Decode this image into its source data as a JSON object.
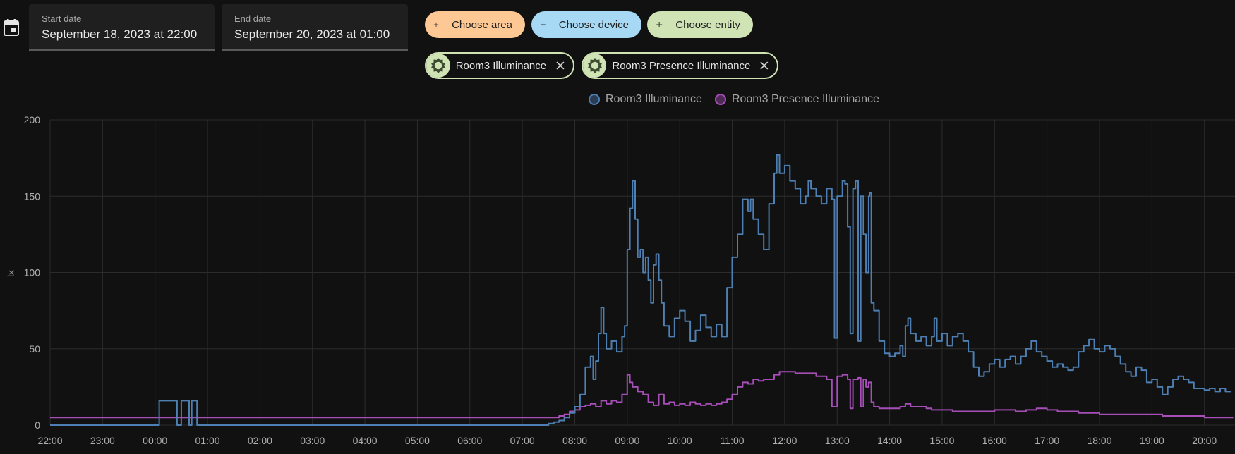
{
  "date_range": {
    "start_label": "Start date",
    "start_value": "September 18, 2023 at 22:00",
    "end_label": "End date",
    "end_value": "September 20, 2023 at 01:00"
  },
  "target_picker": {
    "choose_area": "Choose area",
    "choose_device": "Choose device",
    "choose_entity": "Choose entity"
  },
  "selected_entities": [
    {
      "label": "Room3 Illuminance",
      "icon": "brightness-icon"
    },
    {
      "label": "Room3 Presence Illuminance",
      "icon": "brightness-icon"
    }
  ],
  "colors": {
    "area_chip": "#fdc894",
    "device_chip": "#a7d9f4",
    "entity_chip": "#cfe3b5",
    "series_1": "#4e7fb3",
    "series_2": "#a74eb8",
    "grid": "#2c2c2c",
    "background": "#111111"
  },
  "chart_data": {
    "type": "line",
    "title": "",
    "xlabel": "",
    "ylabel": "lx",
    "ylim": [
      0,
      200
    ],
    "y_ticks": [
      "0",
      "50",
      "100",
      "150",
      "200"
    ],
    "x_tick_labels": [
      "22:00",
      "23:00",
      "00:00",
      "01:00",
      "02:00",
      "03:00",
      "04:00",
      "05:00",
      "06:00",
      "07:00",
      "08:00",
      "09:00",
      "10:00",
      "11:00",
      "12:00",
      "13:00",
      "14:00",
      "15:00",
      "16:00",
      "17:00",
      "18:00",
      "19:00",
      "20:00"
    ],
    "x_unit": "hours since 2023-09-18 22:00",
    "xlim": [
      0,
      22.55
    ],
    "legend": [
      "Room3 Illuminance",
      "Room3 Presence Illuminance"
    ],
    "series": [
      {
        "name": "Room3 Illuminance",
        "step": true,
        "points": [
          [
            0,
            0
          ],
          [
            2.08,
            0
          ],
          [
            2.08,
            16
          ],
          [
            2.42,
            16
          ],
          [
            2.42,
            0
          ],
          [
            2.5,
            0
          ],
          [
            2.5,
            16
          ],
          [
            2.65,
            16
          ],
          [
            2.65,
            0
          ],
          [
            2.7,
            0
          ],
          [
            2.7,
            16
          ],
          [
            2.8,
            16
          ],
          [
            2.8,
            0
          ],
          [
            9.45,
            0
          ],
          [
            9.5,
            1
          ],
          [
            9.6,
            2
          ],
          [
            9.7,
            3
          ],
          [
            9.8,
            5
          ],
          [
            9.9,
            8
          ],
          [
            10.0,
            12
          ],
          [
            10.1,
            20
          ],
          [
            10.2,
            38
          ],
          [
            10.3,
            45
          ],
          [
            10.35,
            30
          ],
          [
            10.4,
            42
          ],
          [
            10.45,
            60
          ],
          [
            10.5,
            77
          ],
          [
            10.55,
            60
          ],
          [
            10.6,
            50
          ],
          [
            10.7,
            55
          ],
          [
            10.8,
            48
          ],
          [
            10.9,
            58
          ],
          [
            10.95,
            65
          ],
          [
            11.0,
            115
          ],
          [
            11.05,
            142
          ],
          [
            11.1,
            160
          ],
          [
            11.15,
            135
          ],
          [
            11.2,
            110
          ],
          [
            11.25,
            115
          ],
          [
            11.3,
            100
          ],
          [
            11.35,
            110
          ],
          [
            11.4,
            95
          ],
          [
            11.45,
            80
          ],
          [
            11.5,
            105
          ],
          [
            11.55,
            112
          ],
          [
            11.6,
            95
          ],
          [
            11.65,
            80
          ],
          [
            11.7,
            65
          ],
          [
            11.8,
            58
          ],
          [
            11.9,
            70
          ],
          [
            12.0,
            75
          ],
          [
            12.1,
            68
          ],
          [
            12.2,
            55
          ],
          [
            12.3,
            62
          ],
          [
            12.4,
            72
          ],
          [
            12.5,
            64
          ],
          [
            12.6,
            58
          ],
          [
            12.7,
            66
          ],
          [
            12.8,
            58
          ],
          [
            12.9,
            90
          ],
          [
            13.0,
            110
          ],
          [
            13.1,
            125
          ],
          [
            13.2,
            148
          ],
          [
            13.3,
            140
          ],
          [
            13.35,
            148
          ],
          [
            13.4,
            135
          ],
          [
            13.5,
            125
          ],
          [
            13.6,
            115
          ],
          [
            13.7,
            145
          ],
          [
            13.8,
            165
          ],
          [
            13.85,
            177
          ],
          [
            13.9,
            165
          ],
          [
            14.0,
            170
          ],
          [
            14.1,
            160
          ],
          [
            14.2,
            155
          ],
          [
            14.3,
            145
          ],
          [
            14.4,
            150
          ],
          [
            14.45,
            160
          ],
          [
            14.5,
            155
          ],
          [
            14.6,
            150
          ],
          [
            14.7,
            145
          ],
          [
            14.8,
            155
          ],
          [
            14.9,
            148
          ],
          [
            14.95,
            57
          ],
          [
            15.0,
            150
          ],
          [
            15.1,
            160
          ],
          [
            15.15,
            158
          ],
          [
            15.2,
            130
          ],
          [
            15.25,
            60
          ],
          [
            15.3,
            155
          ],
          [
            15.35,
            160
          ],
          [
            15.4,
            55
          ],
          [
            15.45,
            150
          ],
          [
            15.5,
            125
          ],
          [
            15.55,
            100
          ],
          [
            15.6,
            150
          ],
          [
            15.62,
            152
          ],
          [
            15.65,
            80
          ],
          [
            15.7,
            75
          ],
          [
            15.8,
            55
          ],
          [
            15.9,
            47
          ],
          [
            16.0,
            45
          ],
          [
            16.1,
            47
          ],
          [
            16.2,
            52
          ],
          [
            16.25,
            45
          ],
          [
            16.3,
            65
          ],
          [
            16.35,
            70
          ],
          [
            16.4,
            60
          ],
          [
            16.5,
            55
          ],
          [
            16.6,
            58
          ],
          [
            16.7,
            52
          ],
          [
            16.8,
            58
          ],
          [
            16.85,
            70
          ],
          [
            16.9,
            55
          ],
          [
            17.0,
            60
          ],
          [
            17.1,
            52
          ],
          [
            17.2,
            58
          ],
          [
            17.3,
            60
          ],
          [
            17.4,
            55
          ],
          [
            17.5,
            48
          ],
          [
            17.6,
            38
          ],
          [
            17.7,
            32
          ],
          [
            17.8,
            35
          ],
          [
            17.9,
            40
          ],
          [
            18.0,
            43
          ],
          [
            18.1,
            38
          ],
          [
            18.2,
            43
          ],
          [
            18.3,
            45
          ],
          [
            18.4,
            40
          ],
          [
            18.5,
            45
          ],
          [
            18.6,
            50
          ],
          [
            18.7,
            55
          ],
          [
            18.8,
            48
          ],
          [
            18.9,
            45
          ],
          [
            19.0,
            42
          ],
          [
            19.1,
            38
          ],
          [
            19.2,
            40
          ],
          [
            19.3,
            38
          ],
          [
            19.4,
            36
          ],
          [
            19.5,
            38
          ],
          [
            19.6,
            48
          ],
          [
            19.7,
            52
          ],
          [
            19.8,
            56
          ],
          [
            19.9,
            50
          ],
          [
            20.0,
            48
          ],
          [
            20.1,
            52
          ],
          [
            20.2,
            50
          ],
          [
            20.3,
            45
          ],
          [
            20.4,
            40
          ],
          [
            20.5,
            35
          ],
          [
            20.6,
            32
          ],
          [
            20.7,
            38
          ],
          [
            20.8,
            36
          ],
          [
            20.9,
            28
          ],
          [
            21.0,
            30
          ],
          [
            21.1,
            25
          ],
          [
            21.2,
            20
          ],
          [
            21.3,
            25
          ],
          [
            21.4,
            30
          ],
          [
            21.5,
            32
          ],
          [
            21.6,
            30
          ],
          [
            21.7,
            28
          ],
          [
            21.8,
            24
          ],
          [
            21.9,
            24
          ],
          [
            22.0,
            23
          ],
          [
            22.1,
            24
          ],
          [
            22.2,
            22
          ],
          [
            22.3,
            24
          ],
          [
            22.4,
            22
          ],
          [
            22.5,
            22
          ]
        ]
      },
      {
        "name": "Room3 Presence Illuminance",
        "step": true,
        "points": [
          [
            0,
            5
          ],
          [
            9.6,
            5
          ],
          [
            9.7,
            6
          ],
          [
            9.8,
            7
          ],
          [
            9.9,
            9
          ],
          [
            10.0,
            10
          ],
          [
            10.1,
            12
          ],
          [
            10.2,
            13
          ],
          [
            10.3,
            14
          ],
          [
            10.4,
            12
          ],
          [
            10.5,
            16
          ],
          [
            10.6,
            14
          ],
          [
            10.7,
            16
          ],
          [
            10.8,
            15
          ],
          [
            10.9,
            20
          ],
          [
            11.0,
            33
          ],
          [
            11.05,
            28
          ],
          [
            11.1,
            25
          ],
          [
            11.2,
            22
          ],
          [
            11.3,
            20
          ],
          [
            11.4,
            15
          ],
          [
            11.5,
            13
          ],
          [
            11.6,
            20
          ],
          [
            11.7,
            14
          ],
          [
            11.8,
            15
          ],
          [
            11.9,
            13
          ],
          [
            12.0,
            14
          ],
          [
            12.1,
            13
          ],
          [
            12.2,
            15
          ],
          [
            12.3,
            14
          ],
          [
            12.4,
            13
          ],
          [
            12.5,
            14
          ],
          [
            12.6,
            13
          ],
          [
            12.7,
            14
          ],
          [
            12.8,
            15
          ],
          [
            12.9,
            17
          ],
          [
            13.0,
            20
          ],
          [
            13.1,
            25
          ],
          [
            13.2,
            28
          ],
          [
            13.3,
            27
          ],
          [
            13.4,
            30
          ],
          [
            13.5,
            29
          ],
          [
            13.6,
            30
          ],
          [
            13.7,
            30
          ],
          [
            13.8,
            33
          ],
          [
            13.9,
            35
          ],
          [
            14.0,
            35
          ],
          [
            14.2,
            34
          ],
          [
            14.4,
            34
          ],
          [
            14.6,
            32
          ],
          [
            14.8,
            30
          ],
          [
            14.9,
            12
          ],
          [
            15.0,
            32
          ],
          [
            15.1,
            33
          ],
          [
            15.2,
            30
          ],
          [
            15.25,
            11
          ],
          [
            15.3,
            30
          ],
          [
            15.4,
            31
          ],
          [
            15.45,
            12
          ],
          [
            15.5,
            30
          ],
          [
            15.55,
            25
          ],
          [
            15.6,
            28
          ],
          [
            15.65,
            15
          ],
          [
            15.7,
            12
          ],
          [
            15.8,
            11
          ],
          [
            16.0,
            11
          ],
          [
            16.1,
            11
          ],
          [
            16.2,
            12
          ],
          [
            16.3,
            14
          ],
          [
            16.4,
            12
          ],
          [
            16.5,
            12
          ],
          [
            16.7,
            11
          ],
          [
            16.8,
            10
          ],
          [
            17.0,
            10
          ],
          [
            17.2,
            9
          ],
          [
            17.4,
            9
          ],
          [
            17.6,
            9
          ],
          [
            17.8,
            9
          ],
          [
            18.0,
            10
          ],
          [
            18.2,
            10
          ],
          [
            18.4,
            9
          ],
          [
            18.6,
            10
          ],
          [
            18.8,
            11
          ],
          [
            19.0,
            10
          ],
          [
            19.2,
            9
          ],
          [
            19.4,
            9
          ],
          [
            19.6,
            8
          ],
          [
            19.8,
            8
          ],
          [
            20.0,
            7
          ],
          [
            20.2,
            7
          ],
          [
            20.4,
            7
          ],
          [
            20.6,
            7
          ],
          [
            20.8,
            7
          ],
          [
            21.0,
            7
          ],
          [
            21.2,
            6
          ],
          [
            21.4,
            6
          ],
          [
            21.6,
            6
          ],
          [
            21.8,
            6
          ],
          [
            22.0,
            5
          ],
          [
            22.2,
            5
          ],
          [
            22.55,
            5
          ]
        ]
      }
    ]
  }
}
